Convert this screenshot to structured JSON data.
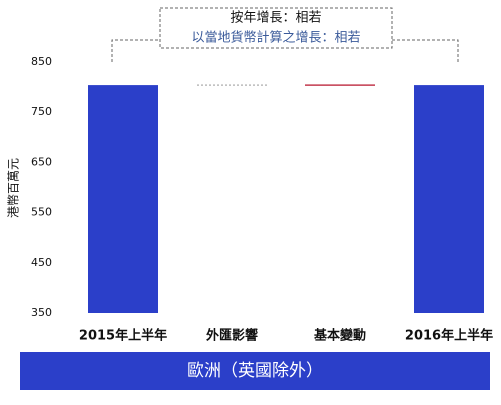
{
  "chart_data": {
    "type": "waterfall",
    "annotation": [
      "按年增長：相若",
      "以當地貨幣計算之增長：相若"
    ],
    "ylabel": "港幣百萬元",
    "footer": "歐洲（英國除外）",
    "categories": [
      "2015年上半年",
      "外匯影響",
      "基本變動",
      "2016年上半年"
    ],
    "values": [
      804,
      0,
      0,
      804
    ],
    "colors": [
      "#2b3fc9",
      "#bbbbbb",
      "#c23a4e",
      "#2b3fc9"
    ],
    "ylim": [
      350,
      850
    ],
    "yticks": [
      350,
      450,
      550,
      650,
      750,
      850
    ],
    "grid": false
  }
}
